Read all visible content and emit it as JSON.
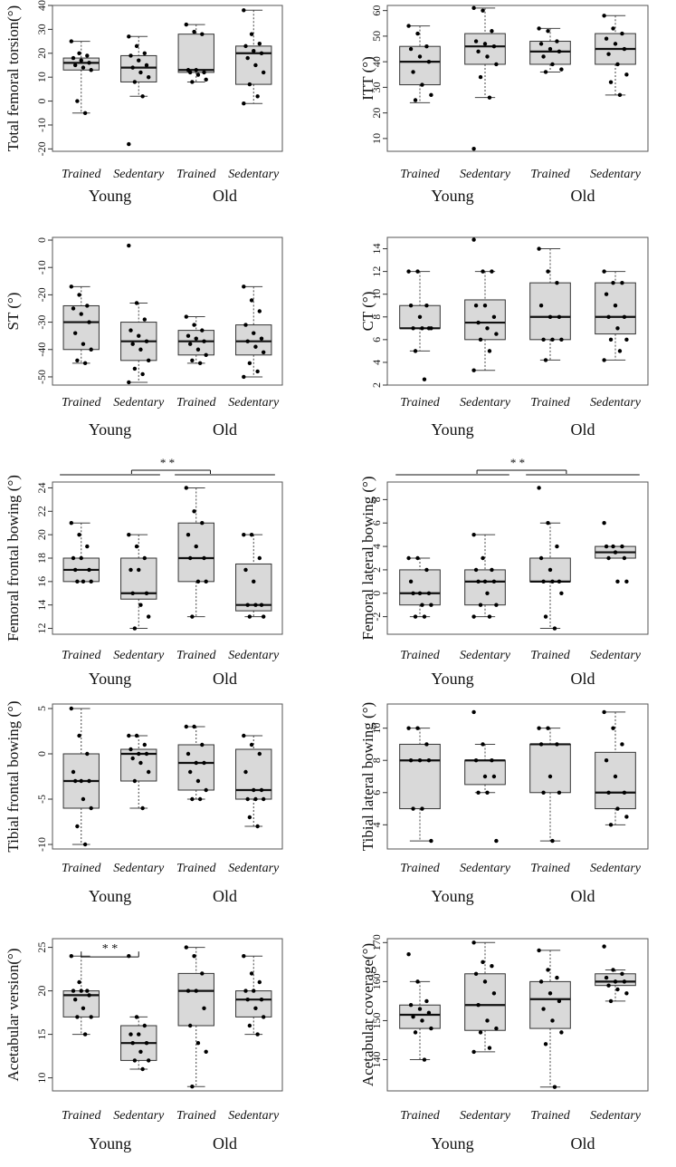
{
  "figure": {
    "box_fill": "#d9d9d9",
    "box_stroke": "#333333",
    "point_color": "#000000"
  },
  "chart_data": [
    {
      "type": "box",
      "ylabel": "Total femoral torsion(°)",
      "yticks": [
        -20,
        -10,
        0,
        10,
        20,
        30,
        40
      ],
      "ylim": [
        -21,
        40
      ],
      "categories": [
        "Trained",
        "Sedentary",
        "Trained",
        "Sedentary"
      ],
      "groups": [
        "Young",
        "Old"
      ],
      "boxes": [
        {
          "min": -5,
          "q1": 13,
          "median": 16,
          "q3": 18,
          "max": 25,
          "points": [
            25,
            20,
            19,
            18,
            17,
            16,
            15,
            14,
            13,
            0,
            -5
          ]
        },
        {
          "min": 2,
          "q1": 8,
          "median": 14,
          "q3": 19,
          "max": 27,
          "points": [
            27,
            23,
            20,
            19,
            17,
            15,
            14,
            12,
            10,
            8,
            2,
            -18
          ]
        },
        {
          "min": 8,
          "q1": 12,
          "median": 13,
          "q3": 28,
          "max": 32,
          "points": [
            32,
            29,
            28,
            13,
            13,
            12,
            12,
            11,
            9,
            8
          ]
        },
        {
          "min": -1,
          "q1": 7,
          "median": 20,
          "q3": 23,
          "max": 38,
          "points": [
            38,
            28,
            24,
            23,
            21,
            20,
            18,
            15,
            12,
            7,
            2,
            -1
          ]
        }
      ],
      "significance": null
    },
    {
      "type": "box",
      "ylabel": "ITT (°)",
      "yticks": [
        10,
        20,
        30,
        40,
        50,
        60
      ],
      "ylim": [
        5,
        62
      ],
      "categories": [
        "Trained",
        "Sedentary",
        "Trained",
        "Sedentary"
      ],
      "groups": [
        "Young",
        "Old"
      ],
      "boxes": [
        {
          "min": 24,
          "q1": 31,
          "median": 40,
          "q3": 46,
          "max": 54,
          "points": [
            54,
            51,
            46,
            45,
            42,
            40,
            36,
            31,
            27,
            25
          ]
        },
        {
          "min": 26,
          "q1": 39,
          "median": 46,
          "q3": 51,
          "max": 61,
          "points": [
            61,
            60,
            52,
            48,
            47,
            46,
            44,
            42,
            39,
            34,
            26,
            6
          ]
        },
        {
          "min": 36,
          "q1": 39,
          "median": 44,
          "q3": 48,
          "max": 53,
          "points": [
            53,
            52,
            48,
            47,
            45,
            44,
            42,
            39,
            37,
            36
          ]
        },
        {
          "min": 27,
          "q1": 39,
          "median": 45,
          "q3": 51,
          "max": 58,
          "points": [
            58,
            53,
            51,
            49,
            47,
            45,
            43,
            39,
            35,
            32,
            27
          ]
        }
      ],
      "significance": null
    },
    {
      "type": "box",
      "ylabel": "ST (°)",
      "yticks": [
        -50,
        -40,
        -30,
        -20,
        -10,
        0
      ],
      "ylim": [
        -53,
        1
      ],
      "categories": [
        "Trained",
        "Sedentary",
        "Trained",
        "Sedentary"
      ],
      "groups": [
        "Young",
        "Old"
      ],
      "boxes": [
        {
          "min": -45,
          "q1": -40,
          "median": -30,
          "q3": -24,
          "max": -17,
          "points": [
            -17,
            -20,
            -24,
            -25,
            -27,
            -30,
            -34,
            -38,
            -40,
            -44,
            -45
          ]
        },
        {
          "min": -52,
          "q1": -44,
          "median": -37,
          "q3": -30,
          "max": -23,
          "points": [
            -2,
            -23,
            -29,
            -33,
            -35,
            -37,
            -38,
            -40,
            -44,
            -47,
            -49,
            -52
          ]
        },
        {
          "min": -45,
          "q1": -42,
          "median": -37,
          "q3": -33,
          "max": -28,
          "points": [
            -28,
            -31,
            -33,
            -35,
            -36,
            -37,
            -38,
            -40,
            -42,
            -44,
            -45
          ]
        },
        {
          "min": -50,
          "q1": -42,
          "median": -37,
          "q3": -31,
          "max": -17,
          "points": [
            -17,
            -22,
            -26,
            -31,
            -34,
            -36,
            -37,
            -39,
            -41,
            -45,
            -48,
            -50
          ]
        }
      ],
      "significance": null
    },
    {
      "type": "box",
      "ylabel": "CT (°)",
      "yticks": [
        2,
        4,
        6,
        8,
        10,
        12,
        14
      ],
      "ylim": [
        2,
        15
      ],
      "categories": [
        "Trained",
        "Sedentary",
        "Trained",
        "Sedentary"
      ],
      "groups": [
        "Young",
        "Old"
      ],
      "boxes": [
        {
          "min": 5,
          "q1": 7,
          "median": 7,
          "q3": 9,
          "max": 12,
          "points": [
            12,
            12,
            9,
            9,
            8,
            7,
            7,
            7,
            7,
            5,
            2.5
          ]
        },
        {
          "min": 3.3,
          "q1": 6,
          "median": 7.5,
          "q3": 9.5,
          "max": 12,
          "points": [
            14.8,
            12,
            12,
            9,
            9,
            8,
            7.5,
            7,
            6.5,
            6,
            5,
            3.3
          ]
        },
        {
          "min": 4.2,
          "q1": 6,
          "median": 8,
          "q3": 11,
          "max": 14,
          "points": [
            14,
            12,
            11,
            9,
            8,
            8,
            6,
            6,
            6,
            4.2
          ]
        },
        {
          "min": 4.2,
          "q1": 6.5,
          "median": 8,
          "q3": 11,
          "max": 12,
          "points": [
            12,
            11,
            11,
            10,
            9,
            8,
            8,
            7,
            6,
            6,
            5,
            4.2
          ]
        }
      ],
      "significance": null
    },
    {
      "type": "box",
      "ylabel": "Femoral frontal bowing (°)",
      "yticks": [
        12,
        14,
        16,
        18,
        20,
        22,
        24
      ],
      "ylim": [
        11.5,
        24.5
      ],
      "categories": [
        "Trained",
        "Sedentary",
        "Trained",
        "Sedentary"
      ],
      "groups": [
        "Young",
        "Old"
      ],
      "boxes": [
        {
          "min": 16,
          "q1": 16,
          "median": 17,
          "q3": 18,
          "max": 21,
          "points": [
            21,
            20,
            19,
            18,
            18,
            17,
            17,
            16,
            16,
            16
          ]
        },
        {
          "min": 12,
          "q1": 14.5,
          "median": 15,
          "q3": 18,
          "max": 20,
          "points": [
            20,
            19,
            18,
            17,
            17,
            15,
            15,
            14,
            13,
            12
          ]
        },
        {
          "min": 13,
          "q1": 16,
          "median": 18,
          "q3": 21,
          "max": 24,
          "points": [
            24,
            22,
            21,
            20,
            19,
            18,
            18,
            16,
            16,
            13
          ]
        },
        {
          "min": 13,
          "q1": 13.5,
          "median": 14,
          "q3": 17.5,
          "max": 20,
          "points": [
            20,
            20,
            18,
            17,
            16,
            14,
            14,
            14,
            13,
            13
          ]
        }
      ],
      "significance": {
        "label": "* *",
        "style": "lines"
      }
    },
    {
      "type": "box",
      "ylabel": "Femoral lateral bowing (°)",
      "yticks": [
        -2,
        0,
        2,
        4,
        6,
        8
      ],
      "ylim": [
        -3.5,
        9.5
      ],
      "categories": [
        "Trained",
        "Sedentary",
        "Trained",
        "Sedentary"
      ],
      "groups": [
        "Young",
        "Old"
      ],
      "boxes": [
        {
          "min": -2,
          "q1": -1,
          "median": 0,
          "q3": 2,
          "max": 3,
          "points": [
            3,
            3,
            2,
            1,
            0,
            0,
            0,
            -1,
            -1,
            -2,
            -2
          ]
        },
        {
          "min": -2,
          "q1": -1,
          "median": 1,
          "q3": 2,
          "max": 5,
          "points": [
            5,
            3,
            2,
            2,
            1,
            1,
            1,
            0,
            -1,
            -1,
            -2,
            -2
          ]
        },
        {
          "min": -3,
          "q1": 1,
          "median": 1,
          "q3": 3,
          "max": 6,
          "points": [
            9,
            6,
            4,
            3,
            2,
            1,
            1,
            1,
            0,
            -2,
            -3
          ]
        },
        {
          "min": 3,
          "q1": 3,
          "median": 3.5,
          "q3": 4,
          "max": 4,
          "points": [
            6,
            4,
            4,
            4,
            3.5,
            3,
            3,
            1,
            1
          ]
        }
      ],
      "significance": {
        "label": "* *",
        "style": "lines"
      }
    },
    {
      "type": "box",
      "ylabel": "Tibial frontal bowing (°)",
      "yticks": [
        -10,
        -5,
        0,
        5
      ],
      "ylim": [
        -10.5,
        5.5
      ],
      "categories": [
        "Trained",
        "Sedentary",
        "Trained",
        "Sedentary"
      ],
      "groups": [
        "Young",
        "Old"
      ],
      "boxes": [
        {
          "min": -10,
          "q1": -6,
          "median": -3,
          "q3": 0,
          "max": 5,
          "points": [
            5,
            2,
            0,
            -2,
            -3,
            -3,
            -3,
            -5,
            -6,
            -8,
            -10
          ]
        },
        {
          "min": -6,
          "q1": -3,
          "median": 0,
          "q3": 0.5,
          "max": 2,
          "points": [
            2,
            2,
            1,
            0.5,
            0,
            0,
            -0.5,
            -1,
            -2,
            -3,
            -6
          ]
        },
        {
          "min": -5,
          "q1": -4,
          "median": -1,
          "q3": 1,
          "max": 3,
          "points": [
            3,
            3,
            1,
            0,
            -1,
            -1,
            -2,
            -3,
            -4,
            -5,
            -5
          ]
        },
        {
          "min": -8,
          "q1": -5,
          "median": -4,
          "q3": 0.5,
          "max": 2,
          "points": [
            2,
            1,
            0,
            -2,
            -4,
            -4,
            -5,
            -5,
            -5,
            -7,
            -8
          ]
        }
      ],
      "significance": null
    },
    {
      "type": "box",
      "ylabel": "Tibial lateral bowing (°)",
      "yticks": [
        4,
        6,
        8,
        10
      ],
      "ylim": [
        2.5,
        11.5
      ],
      "categories": [
        "Trained",
        "Sedentary",
        "Trained",
        "Sedentary"
      ],
      "groups": [
        "Young",
        "Old"
      ],
      "boxes": [
        {
          "min": 3,
          "q1": 5,
          "median": 8,
          "q3": 9,
          "max": 10,
          "points": [
            10,
            10,
            9,
            8,
            8,
            8,
            5,
            5,
            3
          ]
        },
        {
          "min": 6,
          "q1": 6.5,
          "median": 8,
          "q3": 8,
          "max": 9,
          "points": [
            11,
            9,
            8,
            8,
            7,
            7,
            6,
            6,
            3
          ]
        },
        {
          "min": 3,
          "q1": 6,
          "median": 9,
          "q3": 9,
          "max": 10,
          "points": [
            10,
            10,
            9,
            9,
            7,
            6,
            6,
            3
          ]
        },
        {
          "min": 4,
          "q1": 5,
          "median": 6,
          "q3": 8.5,
          "max": 11,
          "points": [
            11,
            10,
            9,
            8,
            7,
            6,
            6,
            5,
            4.5,
            4
          ]
        }
      ],
      "significance": null
    },
    {
      "type": "box",
      "ylabel": "Acetabular version(°)",
      "yticks": [
        10,
        15,
        20,
        25
      ],
      "ylim": [
        8.5,
        26
      ],
      "categories": [
        "Trained",
        "Sedentary",
        "Trained",
        "Sedentary"
      ],
      "groups": [
        "Young",
        "Old"
      ],
      "boxes": [
        {
          "min": 15,
          "q1": 17,
          "median": 19.5,
          "q3": 20,
          "max": 24,
          "points": [
            24,
            21,
            20,
            20,
            20,
            19.5,
            19,
            18,
            17,
            17,
            15
          ]
        },
        {
          "min": 11,
          "q1": 12,
          "median": 14,
          "q3": 16,
          "max": 17,
          "points": [
            24,
            17,
            16,
            15,
            15,
            14,
            14,
            13,
            12,
            12,
            11
          ]
        },
        {
          "min": 9,
          "q1": 16,
          "median": 20,
          "q3": 22,
          "max": 25,
          "points": [
            25,
            24,
            22,
            20,
            20,
            18,
            16,
            14,
            13,
            9
          ]
        },
        {
          "min": 15,
          "q1": 17,
          "median": 19,
          "q3": 20,
          "max": 24,
          "points": [
            24,
            22,
            21,
            20,
            20,
            19,
            19,
            18,
            17,
            16,
            15
          ]
        }
      ],
      "significance": {
        "label": "* *",
        "style": "bracket"
      }
    },
    {
      "type": "box",
      "ylabel": "Acetabular coverage(°)",
      "yticks": [
        140,
        150,
        160,
        170
      ],
      "ylim": [
        132,
        171
      ],
      "categories": [
        "Trained",
        "Sedentary",
        "Trained",
        "Sedentary"
      ],
      "groups": [
        "Young",
        "Old"
      ],
      "boxes": [
        {
          "min": 140,
          "q1": 148,
          "median": 151.5,
          "q3": 154,
          "max": 160,
          "points": [
            167,
            160,
            155,
            154,
            153,
            152,
            151,
            150,
            148,
            147,
            140
          ]
        },
        {
          "min": 142,
          "q1": 147.5,
          "median": 154,
          "q3": 162,
          "max": 170,
          "points": [
            170,
            165,
            164,
            162,
            160,
            157,
            154,
            150,
            148,
            147,
            143,
            142
          ]
        },
        {
          "min": 133,
          "q1": 148,
          "median": 155.5,
          "q3": 160,
          "max": 168,
          "points": [
            168,
            163,
            161,
            160,
            157,
            155,
            153,
            150,
            147,
            144,
            133
          ]
        },
        {
          "min": 155,
          "q1": 159,
          "median": 160,
          "q3": 162,
          "max": 163,
          "points": [
            169,
            163,
            162,
            161,
            160,
            160,
            159,
            158,
            157,
            155
          ]
        }
      ],
      "significance": null
    }
  ]
}
